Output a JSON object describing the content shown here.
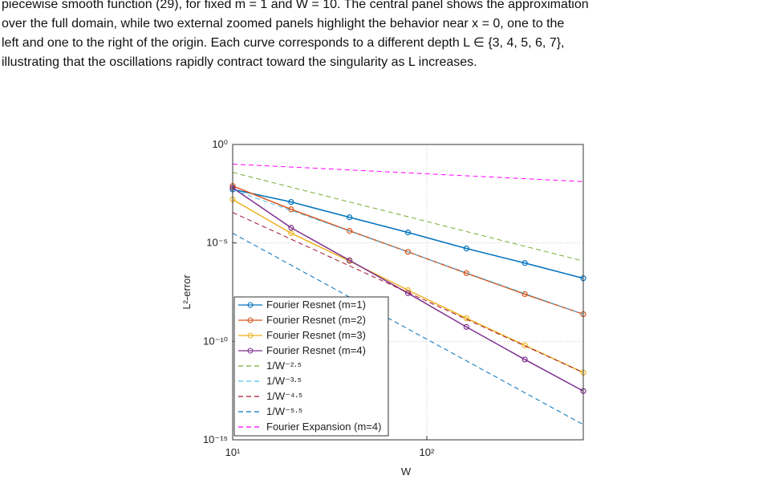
{
  "paragraph": [
    "piecewise smooth function (29), for fixed m = 1 and W = 10. The central panel shows the approximation",
    "over the full domain, while two external zoomed panels highlight the behavior near x = 0, one to the",
    "left and one to the right of the origin. Each curve corresponds to a different depth L ∈ {3, 4, 5, 6, 7},",
    "illustrating that the oscillations rapidly contract toward the singularity as L increases."
  ],
  "chart_data": {
    "type": "line",
    "xlabel": "W",
    "ylabel": "L²-error",
    "xscale": "log",
    "yscale": "log",
    "grid": true,
    "xlim": [
      10,
      640
    ],
    "ylim": [
      1e-15,
      1
    ],
    "xticks": [
      {
        "value": 10,
        "label": "10¹"
      },
      {
        "value": 100,
        "label": "10²"
      }
    ],
    "yticks": [
      {
        "value": 1e-15,
        "label": "10⁻¹⁵"
      },
      {
        "value": 1e-10,
        "label": "10⁻¹⁰"
      },
      {
        "value": 1e-05,
        "label": "10⁻⁵"
      },
      {
        "value": 1,
        "label": "10⁰"
      }
    ],
    "legend": "lower-left",
    "series": [
      {
        "name": "Fourier Resnet (m=1)",
        "color": "#0072bd",
        "style": "solid",
        "marker": "o",
        "x": [
          10,
          20,
          40,
          80,
          160,
          320,
          640
        ],
        "values": [
          0.0052,
          0.0012,
          0.0002,
          3.4e-05,
          5.2e-06,
          9.5e-07,
          1.6e-07
        ]
      },
      {
        "name": "Fourier Resnet (m=2)",
        "color": "#d95319",
        "style": "solid",
        "marker": "o",
        "x": [
          10,
          20,
          40,
          80,
          160,
          320,
          640
        ],
        "values": [
          0.0078,
          0.00051,
          4.1e-05,
          3.5e-06,
          2.9e-07,
          2.5e-08,
          2.4e-09
        ]
      },
      {
        "name": "Fourier Resnet (m=3)",
        "color": "#edb120",
        "style": "solid",
        "marker": "o",
        "x": [
          10,
          20,
          40,
          80,
          160,
          320,
          640
        ],
        "values": [
          0.0016,
          3.1e-05,
          1.2e-06,
          4e-08,
          1.5e-09,
          6.3e-11,
          2.6e-12
        ]
      },
      {
        "name": "Fourier Resnet (m=4)",
        "color": "#7e2f8e",
        "style": "solid",
        "marker": "o",
        "x": [
          10,
          20,
          40,
          80,
          160,
          320,
          640
        ],
        "values": [
          0.0063,
          5.9e-05,
          1.3e-06,
          2.8e-08,
          5.4e-10,
          1.2e-11,
          3e-13
        ]
      },
      {
        "name": "1/W⁻²·⁵",
        "color": "#77ac30",
        "style": "dashed",
        "x": [
          10,
          640
        ],
        "values": [
          0.038,
          1.2e-06
        ]
      },
      {
        "name": "1/W⁻³·⁵",
        "color": "#4dbeee",
        "style": "dashed",
        "x": [
          10,
          640
        ],
        "values": [
          0.005,
          2.4e-09
        ]
      },
      {
        "name": "1/W⁻⁴·⁵",
        "color": "#a2142f",
        "style": "dashed",
        "x": [
          10,
          640
        ],
        "values": [
          0.00035,
          2.6e-12
        ]
      },
      {
        "name": "1/W⁻⁵·⁵",
        "color": "#0072bd",
        "style": "dashed",
        "x": [
          10,
          640
        ],
        "values": [
          3.1e-05,
          5.9e-15
        ]
      },
      {
        "name": "Fourier Expansion (m=4)",
        "color": "#ff00ff",
        "style": "dashed",
        "x": [
          10,
          640
        ],
        "values": [
          0.1,
          0.013
        ]
      }
    ]
  }
}
